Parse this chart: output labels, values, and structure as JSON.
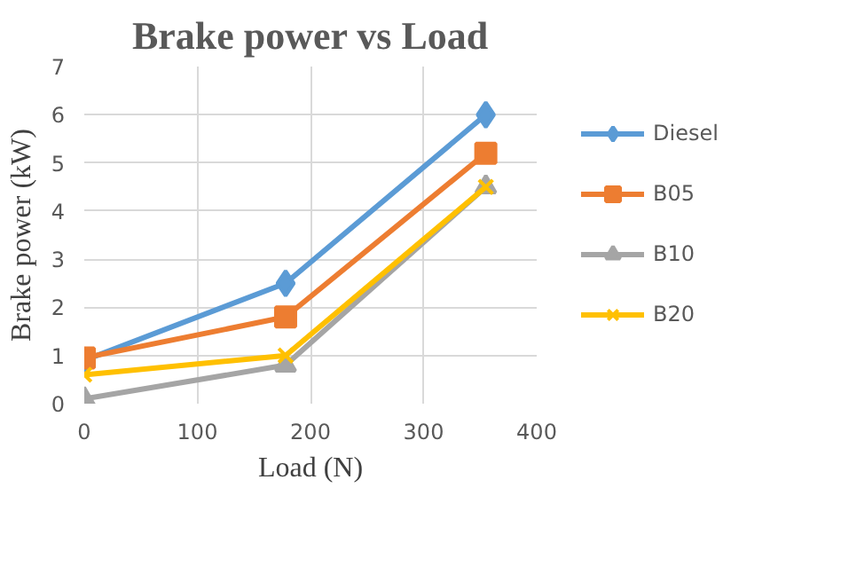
{
  "chart_data": {
    "type": "line",
    "title": "Brake power vs Load",
    "xlabel": "Load (N)",
    "ylabel": "Brake power (kW)",
    "x": [
      0,
      178,
      355
    ],
    "series": [
      {
        "name": "Diesel",
        "color": "#5b9bd5",
        "marker": "diamond",
        "values": [
          0.9,
          2.5,
          6.0
        ]
      },
      {
        "name": "B05",
        "color": "#ed7d31",
        "marker": "square",
        "values": [
          0.95,
          1.8,
          5.2
        ]
      },
      {
        "name": "B10",
        "color": "#a5a5a5",
        "marker": "triangle",
        "values": [
          0.1,
          0.8,
          4.5
        ]
      },
      {
        "name": "B20",
        "color": "#ffc000",
        "marker": "cross",
        "values": [
          0.6,
          1.0,
          4.5
        ]
      }
    ],
    "xlim": [
      0,
      400
    ],
    "xticks": [
      0,
      100,
      200,
      300,
      400
    ],
    "ylim": [
      0,
      7
    ],
    "yticks": [
      0,
      1,
      2,
      3,
      4,
      5,
      6,
      7
    ],
    "grid": true,
    "legend": "right",
    "line_style": "solid"
  }
}
